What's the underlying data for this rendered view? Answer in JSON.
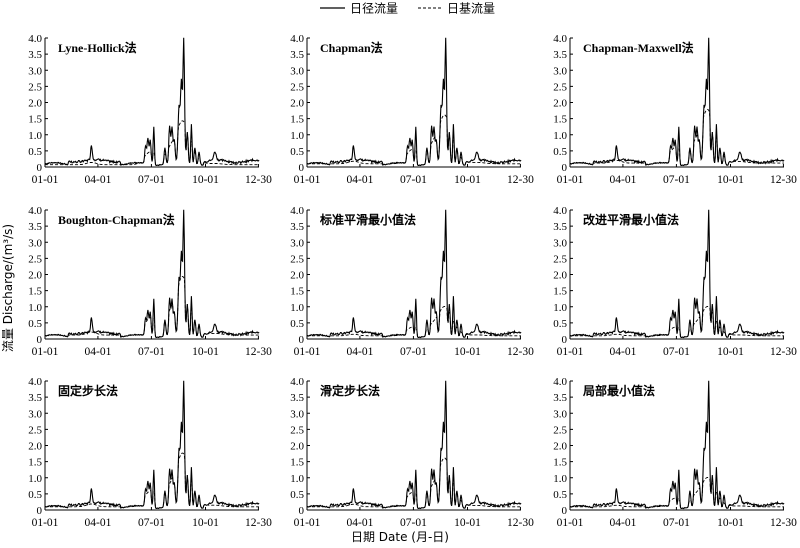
{
  "legend": {
    "daily_label": "日径流量",
    "base_label": "日基流量"
  },
  "axes": {
    "ylabel": "流量 Discharge/(m³/s)",
    "xlabel": "日期 Date (月-日)"
  },
  "chart_data": [
    {
      "type": "line",
      "title": "Lyne-Hollick法",
      "categories": [
        "01-01",
        "04-01",
        "07-01",
        "10-01",
        "12-30"
      ],
      "y_ticks": [
        "0",
        "0.5",
        "1.0",
        "1.5",
        "2.0",
        "2.5",
        "3.0",
        "3.5",
        "4.0"
      ],
      "ylim": [
        0,
        4.0
      ],
      "xlim": [
        1,
        365
      ],
      "base_level": 0.07,
      "base_scale": 0.45,
      "base_style": "smooth",
      "series": [
        {
          "name": "日径流量",
          "style": "solid"
        },
        {
          "name": "日基流量",
          "style": "dashed"
        }
      ]
    },
    {
      "type": "line",
      "title": "Chapman法",
      "categories": [
        "01-01",
        "04-01",
        "07-01",
        "10-01",
        "12-30"
      ],
      "y_ticks": [
        "0",
        "0.5",
        "1.0",
        "1.5",
        "2.0",
        "2.5",
        "3.0",
        "3.5",
        "4.0"
      ],
      "ylim": [
        0,
        4.0
      ],
      "xlim": [
        1,
        365
      ],
      "base_level": 0.1,
      "base_scale": 0.5,
      "base_style": "smooth",
      "series": [
        {
          "name": "日径流量",
          "style": "solid"
        },
        {
          "name": "日基流量",
          "style": "dashed"
        }
      ]
    },
    {
      "type": "line",
      "title": "Chapman-Maxwell法",
      "categories": [
        "01-01",
        "04-01",
        "07-01",
        "10-01",
        "12-30"
      ],
      "y_ticks": [
        "0",
        "0.5",
        "1.0",
        "1.5",
        "2.0",
        "2.5",
        "3.0",
        "3.5",
        "4.0"
      ],
      "ylim": [
        0,
        4.0
      ],
      "xlim": [
        1,
        365
      ],
      "base_level": 0.12,
      "base_scale": 0.55,
      "base_style": "smooth",
      "series": [
        {
          "name": "日径流量",
          "style": "solid"
        },
        {
          "name": "日基流量",
          "style": "dashed"
        }
      ]
    },
    {
      "type": "line",
      "title": "Boughton-Chapman法",
      "categories": [
        "01-01",
        "04-01",
        "07-01",
        "10-01",
        "12-30"
      ],
      "y_ticks": [
        "0",
        "0.5",
        "1.0",
        "1.5",
        "2.0",
        "2.5",
        "3.0",
        "3.5",
        "4.0"
      ],
      "ylim": [
        0,
        4.0
      ],
      "xlim": [
        1,
        365
      ],
      "base_level": 0.12,
      "base_scale": 0.6,
      "base_style": "smooth",
      "series": [
        {
          "name": "日径流量",
          "style": "solid"
        },
        {
          "name": "日基流量",
          "style": "dashed"
        }
      ]
    },
    {
      "type": "line",
      "title": "标准平滑最小值法",
      "categories": [
        "01-01",
        "04-01",
        "07-01",
        "10-01",
        "12-30"
      ],
      "y_ticks": [
        "0",
        "0.5",
        "1.0",
        "1.5",
        "2.0",
        "2.5",
        "3.0",
        "3.5",
        "4.0"
      ],
      "ylim": [
        0,
        4.0
      ],
      "xlim": [
        1,
        365
      ],
      "base_level": 0.1,
      "base_scale": 0.3,
      "base_style": "minimum",
      "series": [
        {
          "name": "日径流量",
          "style": "solid"
        },
        {
          "name": "日基流量",
          "style": "dashed"
        }
      ]
    },
    {
      "type": "line",
      "title": "改进平滑最小值法",
      "categories": [
        "01-01",
        "04-01",
        "07-01",
        "10-01",
        "12-30"
      ],
      "y_ticks": [
        "0",
        "0.5",
        "1.0",
        "1.5",
        "2.0",
        "2.5",
        "3.0",
        "3.5",
        "4.0"
      ],
      "ylim": [
        0,
        4.0
      ],
      "xlim": [
        1,
        365
      ],
      "base_level": 0.1,
      "base_scale": 0.3,
      "base_style": "minimum",
      "series": [
        {
          "name": "日径流量",
          "style": "solid"
        },
        {
          "name": "日基流量",
          "style": "dashed"
        }
      ]
    },
    {
      "type": "line",
      "title": "固定步长法",
      "categories": [
        "01-01",
        "04-01",
        "07-01",
        "10-01",
        "12-30"
      ],
      "y_ticks": [
        "0",
        "0.5",
        "1.0",
        "1.5",
        "2.0",
        "2.5",
        "3.0",
        "3.5",
        "4.0"
      ],
      "ylim": [
        0,
        4.0
      ],
      "xlim": [
        1,
        365
      ],
      "base_level": 0.1,
      "base_scale": 0.55,
      "base_style": "step",
      "series": [
        {
          "name": "日径流量",
          "style": "solid"
        },
        {
          "name": "日基流量",
          "style": "dashed"
        }
      ]
    },
    {
      "type": "line",
      "title": "滑定步长法",
      "categories": [
        "01-01",
        "04-01",
        "07-01",
        "10-01",
        "12-30"
      ],
      "y_ticks": [
        "0",
        "0.5",
        "1.0",
        "1.5",
        "2.0",
        "2.5",
        "3.0",
        "3.5",
        "4.0"
      ],
      "ylim": [
        0,
        4.0
      ],
      "xlim": [
        1,
        365
      ],
      "base_level": 0.1,
      "base_scale": 0.5,
      "base_style": "smooth",
      "series": [
        {
          "name": "日径流量",
          "style": "solid"
        },
        {
          "name": "日基流量",
          "style": "dashed"
        }
      ]
    },
    {
      "type": "line",
      "title": "局部最小值法",
      "categories": [
        "01-01",
        "04-01",
        "07-01",
        "10-01",
        "12-30"
      ],
      "y_ticks": [
        "0",
        "0.5",
        "1.0",
        "1.5",
        "2.0",
        "2.5",
        "3.0",
        "3.5",
        "4.0"
      ],
      "ylim": [
        0,
        4.0
      ],
      "xlim": [
        1,
        365
      ],
      "base_level": 0.1,
      "base_scale": 0.3,
      "base_style": "minimum",
      "series": [
        {
          "name": "日径流量",
          "style": "solid"
        },
        {
          "name": "日基流量",
          "style": "dashed"
        }
      ]
    }
  ],
  "discharge_peaks": [
    {
      "day": 80,
      "value": 0.45,
      "width": 2
    },
    {
      "day": 172,
      "value": 0.55,
      "width": 2
    },
    {
      "day": 176,
      "value": 0.8,
      "width": 2
    },
    {
      "day": 180,
      "value": 0.75,
      "width": 2
    },
    {
      "day": 186,
      "value": 1.2,
      "width": 1.5
    },
    {
      "day": 205,
      "value": 0.5,
      "width": 2
    },
    {
      "day": 213,
      "value": 1.15,
      "width": 2
    },
    {
      "day": 217,
      "value": 1.1,
      "width": 2
    },
    {
      "day": 221,
      "value": 0.7,
      "width": 2
    },
    {
      "day": 229,
      "value": 1.75,
      "width": 2.5
    },
    {
      "day": 233,
      "value": 2.4,
      "width": 2
    },
    {
      "day": 237,
      "value": 3.85,
      "width": 2
    },
    {
      "day": 243,
      "value": 1.0,
      "width": 2
    },
    {
      "day": 250,
      "value": 1.25,
      "width": 1.5
    },
    {
      "day": 256,
      "value": 0.55,
      "width": 2
    },
    {
      "day": 263,
      "value": 0.4,
      "width": 2
    },
    {
      "day": 290,
      "value": 0.25,
      "width": 3
    }
  ]
}
